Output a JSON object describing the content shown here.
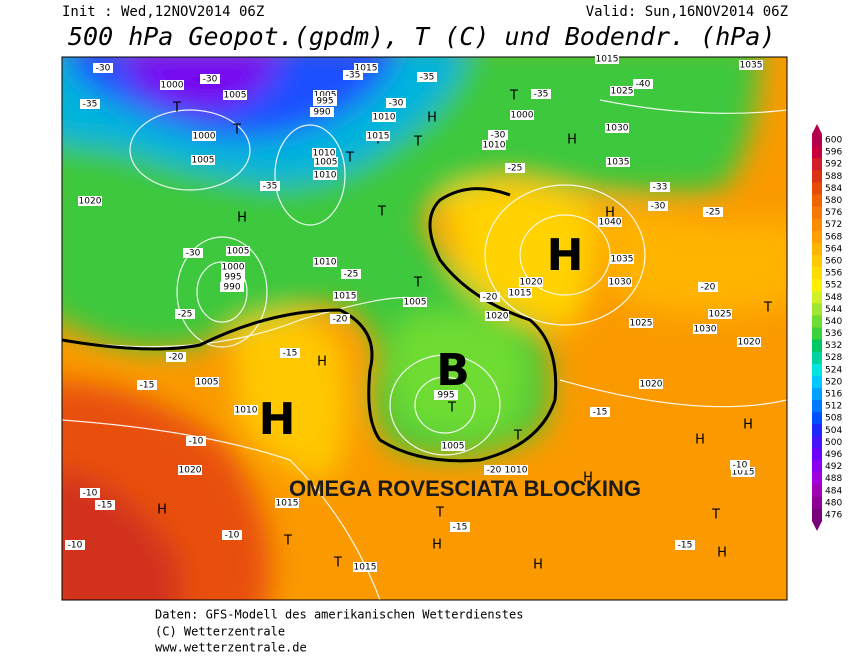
{
  "header": {
    "init": "Init : Wed,12NOV2014 06Z",
    "valid": "Valid: Sun,16NOV2014 06Z",
    "title": "500 hPa Geopot.(gpdm), T (C) und Bodendr. (hPa)"
  },
  "map": {
    "annotation": "OMEGA ROVESCIATA BLOCKING",
    "centers": [
      "H",
      "B",
      "H"
    ],
    "markers": [
      "T",
      "T",
      "T",
      "T",
      "H",
      "H",
      "T",
      "T",
      "T",
      "H",
      "T",
      "H",
      "T",
      "T",
      "H",
      "T",
      "H",
      "H",
      "T",
      "T",
      "H",
      "H",
      "T",
      "H",
      "T",
      "T",
      "H",
      "H"
    ],
    "pressure_labels": [
      "1000",
      "1005",
      "1000",
      "1005",
      "1005",
      "995",
      "990",
      "1015",
      "1010",
      "1010",
      "1005",
      "1010",
      "1020",
      "1005",
      "1000",
      "995",
      "990",
      "1010",
      "1015",
      "1005",
      "1015",
      "1000",
      "1010",
      "1025",
      "1030",
      "1035",
      "1035",
      "1040",
      "1035",
      "1030",
      "1025",
      "1020",
      "1015",
      "1020",
      "1025",
      "1030",
      "1020",
      "1020",
      "1015",
      "1005",
      "1010",
      "1020",
      "1015",
      "1005",
      "1010",
      "1015",
      "1015",
      "995"
    ],
    "temperature_labels": [
      "-30",
      "-35",
      "-30",
      "-35",
      "-35",
      "-40",
      "-35",
      "-30",
      "-30",
      "-35",
      "-25",
      "-30",
      "-25",
      "-20",
      "-15",
      "-20",
      "-15",
      "-10",
      "-10",
      "-15",
      "-10",
      "-10",
      "-15",
      "-20",
      "-25",
      "-20",
      "-15",
      "-10",
      "-15",
      "-20",
      "-25",
      "-30",
      "-33"
    ]
  },
  "legend": {
    "values": [
      600,
      596,
      592,
      588,
      584,
      580,
      576,
      572,
      568,
      564,
      560,
      556,
      552,
      548,
      544,
      540,
      536,
      532,
      528,
      524,
      520,
      516,
      512,
      508,
      504,
      500,
      496,
      492,
      488,
      484,
      480,
      476
    ],
    "colors": [
      "#b4004b",
      "#c8003c",
      "#d21e28",
      "#dc3214",
      "#e64b0a",
      "#f06400",
      "#f57800",
      "#fa8c00",
      "#ffa000",
      "#ffb400",
      "#ffc800",
      "#ffdc00",
      "#fff000",
      "#d2f028",
      "#a0e632",
      "#6edc32",
      "#3cd23c",
      "#00c864",
      "#00d2a0",
      "#00e6dc",
      "#00c8ff",
      "#00a0ff",
      "#0078ff",
      "#0050ff",
      "#1e28ff",
      "#4614ff",
      "#6e00ff",
      "#8c00f0",
      "#a000dc",
      "#a000b4",
      "#8c0096",
      "#780078"
    ]
  },
  "footer": {
    "line1": "Daten: GFS-Modell des amerikanischen Wetterdienstes",
    "line2": "(C) Wetterzentrale",
    "line3": "www.wetterzentrale.de"
  }
}
